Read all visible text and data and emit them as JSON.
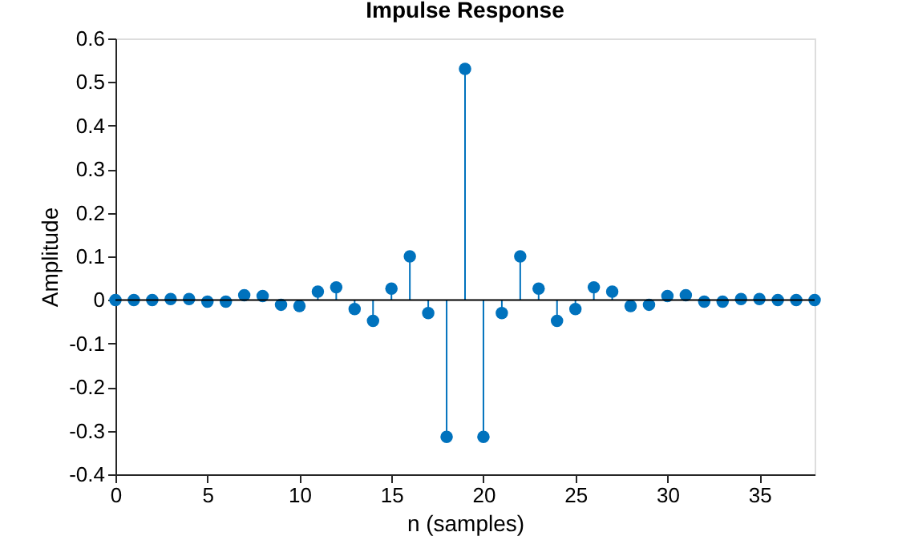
{
  "chart_data": {
    "type": "lollipop",
    "title": "Impulse Response",
    "xlabel": "n (samples)",
    "ylabel": "Amplitude",
    "x": [
      0,
      1,
      2,
      3,
      4,
      5,
      6,
      7,
      8,
      9,
      10,
      11,
      12,
      13,
      14,
      15,
      16,
      17,
      18,
      19,
      20,
      21,
      22,
      23,
      24,
      25,
      26,
      27,
      28,
      29,
      30,
      31,
      32,
      33,
      34,
      35,
      36,
      37,
      38
    ],
    "series": [
      {
        "color": "#0072bd",
        "values": [
          0,
          0,
          0,
          0.002,
          0.002,
          -0.004,
          -0.004,
          0.011,
          0.009,
          -0.011,
          -0.014,
          0.019,
          0.029,
          -0.021,
          -0.048,
          0.026,
          0.1,
          -0.03,
          -0.314,
          0.53,
          -0.314,
          -0.03,
          0.1,
          0.026,
          -0.048,
          -0.021,
          0.029,
          0.019,
          -0.014,
          -0.011,
          0.009,
          0.011,
          -0.004,
          -0.004,
          0.002,
          0.002,
          0,
          0,
          0
        ]
      }
    ],
    "xlim": [
      0,
      38
    ],
    "xticks": [
      0,
      5,
      10,
      15,
      20,
      25,
      30,
      35
    ],
    "ylim": [
      -0.4,
      0.6
    ],
    "yticks": [
      -0.4,
      -0.3,
      -0.2,
      -0.1,
      0,
      0.1,
      0.2,
      0.3,
      0.4,
      0.5,
      0.6
    ],
    "ref_lines": [
      {
        "axis": "y",
        "value": 0,
        "color": "#000000"
      }
    ],
    "marker": "circle",
    "grid": false
  }
}
